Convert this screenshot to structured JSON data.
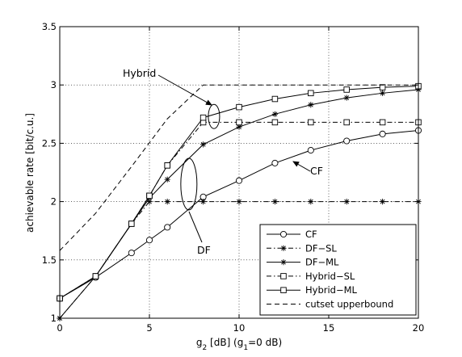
{
  "chart_data": {
    "type": "line",
    "xlabel": {
      "main": "g",
      "sub1": "2",
      "mid": " [dB] (g",
      "sub2": "1",
      "end": "=0 dB)"
    },
    "ylabel": "achievable rate [bit/c.u.]",
    "xlim": [
      0,
      20
    ],
    "ylim": [
      1,
      3.5
    ],
    "xticks": [
      0,
      5,
      10,
      15,
      20
    ],
    "yticks": [
      1,
      1.5,
      2,
      2.5,
      3,
      3.5
    ],
    "xtick_labels": [
      "0",
      "5",
      "10",
      "15",
      "20"
    ],
    "ytick_labels": [
      "1",
      "1.5",
      "2",
      "2.5",
      "3",
      "3.5"
    ],
    "grid": true,
    "legend_position": "bottom-right",
    "series": [
      {
        "name": "CF",
        "line": "solid",
        "marker": "circle",
        "x": [
          0,
          2,
          4,
          5,
          6,
          8,
          10,
          12,
          14,
          16,
          18,
          20
        ],
        "y": [
          1.17,
          1.35,
          1.56,
          1.67,
          1.78,
          2.04,
          2.18,
          2.33,
          2.44,
          2.52,
          2.58,
          2.61
        ]
      },
      {
        "name": "DF−SL",
        "line": "dashdot",
        "marker": "star",
        "x": [
          0,
          2,
          4,
          5,
          6,
          8,
          10,
          12,
          14,
          16,
          18,
          20
        ],
        "y": [
          1.0,
          1.36,
          1.81,
          2.0,
          2.0,
          2.0,
          2.0,
          2.0,
          2.0,
          2.0,
          2.0,
          2.0
        ]
      },
      {
        "name": "DF−ML",
        "line": "solid",
        "marker": "star",
        "x": [
          0,
          2,
          4,
          5,
          6,
          8,
          10,
          12,
          14,
          16,
          18,
          20
        ],
        "y": [
          1.0,
          1.36,
          1.81,
          2.03,
          2.19,
          2.49,
          2.64,
          2.75,
          2.83,
          2.89,
          2.93,
          2.96
        ]
      },
      {
        "name": "Hybrid−SL",
        "line": "dashdot",
        "marker": "square",
        "x": [
          0,
          2,
          4,
          5,
          6,
          8,
          8.5,
          10,
          12,
          14,
          16,
          18,
          20
        ],
        "y": [
          1.17,
          1.36,
          1.81,
          2.05,
          2.31,
          2.68,
          2.68,
          2.68,
          2.68,
          2.68,
          2.68,
          2.68,
          2.68
        ]
      },
      {
        "name": "Hybrid−ML",
        "line": "solid",
        "marker": "square",
        "x": [
          0,
          2,
          4,
          5,
          6,
          8,
          10,
          12,
          14,
          16,
          18,
          20
        ],
        "y": [
          1.17,
          1.36,
          1.81,
          2.05,
          2.31,
          2.72,
          2.81,
          2.88,
          2.93,
          2.96,
          2.98,
          2.99
        ]
      },
      {
        "name": "cutset upperbound",
        "line": "dashed",
        "marker": "none",
        "x": [
          0,
          2,
          4,
          6,
          8,
          8.6,
          10,
          20
        ],
        "y": [
          1.58,
          1.9,
          2.3,
          2.71,
          3.0,
          3.0,
          3.0,
          3.0
        ]
      }
    ],
    "annotations": [
      {
        "text": "Hybrid",
        "x": 6.4,
        "y": 3.08
      },
      {
        "text": "CF",
        "x": 15.6,
        "y": 2.19
      },
      {
        "text": "DF",
        "x": 7.0,
        "y": 1.6
      }
    ]
  }
}
